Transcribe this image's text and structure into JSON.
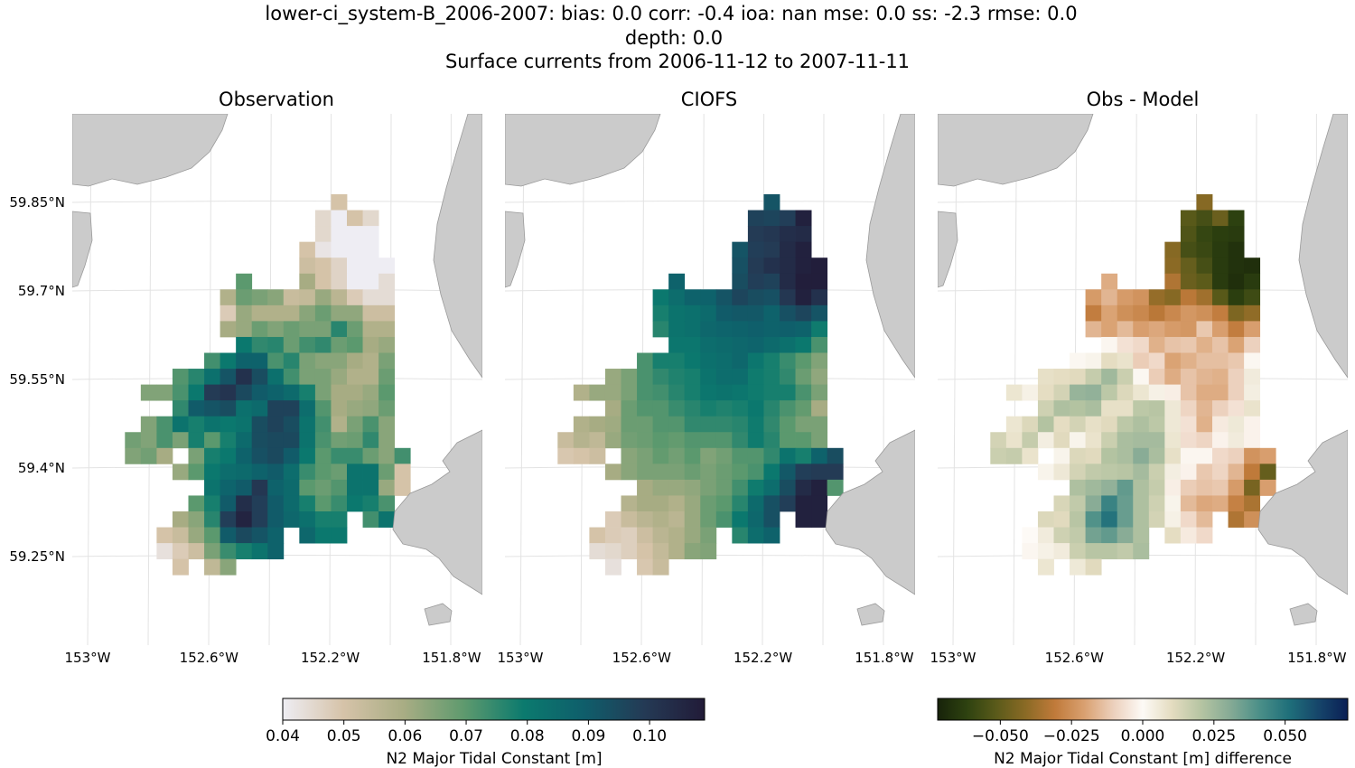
{
  "figure": {
    "title_lines": [
      "lower-ci_system-B_2006-2007: bias: 0.0  corr: -0.4  ioa: nan  mse: 0.0  ss: -2.3  rmse: 0.0",
      "depth: 0.0",
      "Surface currents from 2006-11-12 to 2007-11-11"
    ]
  },
  "panels": [
    {
      "title": "Observation"
    },
    {
      "title": "CIOFS"
    },
    {
      "title": "Obs - Model"
    }
  ],
  "lat_labels": [
    "59.85°N",
    "59.7°N",
    "59.55°N",
    "59.4°N",
    "59.25°N"
  ],
  "lon_labels": [
    "153°W",
    "152.6°W",
    "152.2°W",
    "151.8°W"
  ],
  "colorbars": [
    {
      "label": "N2 Major Tidal Constant [m]",
      "ticks": [
        0.04,
        0.05,
        0.06,
        0.07,
        0.08,
        0.09,
        0.1
      ],
      "tick_labels": [
        "0.04",
        "0.05",
        "0.06",
        "0.07",
        "0.08",
        "0.09",
        "0.10"
      ],
      "range": [
        0.04,
        0.109
      ]
    },
    {
      "label": "N2 Major Tidal Constant [m] difference",
      "ticks": [
        -0.05,
        -0.025,
        0,
        0.025,
        0.05
      ],
      "tick_labels": [
        "−0.050",
        "−0.025",
        "0.000",
        "0.025",
        "0.050"
      ],
      "range": [
        -0.072,
        0.072
      ]
    }
  ],
  "colors": {
    "land": "#cbcbcb",
    "value_cmap": [
      "#eeedf3",
      "#d6c3a9",
      "#a9ad84",
      "#5f9a6e",
      "#0b7a6e",
      "#0f5e6b",
      "#243a55",
      "#221b38"
    ],
    "diff_cmap": [
      "#17230a",
      "#2e4210",
      "#5a5a1a",
      "#8a6a25",
      "#c07a3a",
      "#d9a070",
      "#ecd0bc",
      "#fdfaf6",
      "#e4dcc0",
      "#b5c4a2",
      "#85aa95",
      "#4a8f88",
      "#1f6f7a",
      "#16456a",
      "#0a1f55"
    ]
  },
  "chart_data": {
    "type": "heatmap",
    "lon_range": [
      "153°W",
      "151.8°W"
    ],
    "lat_ticks": [
      59.85,
      59.7,
      59.55,
      59.4,
      59.25
    ],
    "lon_ticks": [
      -153.0,
      -152.6,
      -152.2,
      -151.8
    ],
    "grid_note": "rows top-to-bottom, each row lists start column and values (null = no data)",
    "observation": [
      {
        "c": 13,
        "v": [
          0.05
        ]
      },
      {
        "c": 12,
        "v": [
          0.045,
          0.04,
          0.05,
          0.045
        ]
      },
      {
        "c": 12,
        "v": [
          0.045,
          0.04,
          0.04,
          0.04
        ]
      },
      {
        "c": 11,
        "v": [
          0.05,
          0.042,
          0.04,
          0.04,
          0.04
        ]
      },
      {
        "c": 11,
        "v": [
          0.052,
          0.05,
          0.046,
          0.04,
          0.04,
          0.04
        ]
      },
      {
        "c": 7,
        "v": [
          0.07,
          null,
          null,
          null,
          0.06,
          0.05,
          0.046,
          0.04,
          0.04,
          0.044
        ]
      },
      {
        "c": 6,
        "v": [
          0.058,
          0.068,
          0.066,
          0.064,
          0.053,
          0.054,
          0.062,
          0.056,
          0.048,
          0.044,
          0.044
        ]
      },
      {
        "c": 6,
        "v": [
          0.048,
          0.062,
          0.058,
          0.058,
          0.058,
          0.064,
          0.068,
          0.063,
          0.063,
          0.052,
          0.052
        ]
      },
      {
        "c": 6,
        "v": [
          0.06,
          0.062,
          0.068,
          0.065,
          0.068,
          0.066,
          0.066,
          0.076,
          0.068,
          0.058,
          0.058
        ]
      },
      {
        "c": 7,
        "v": [
          0.08,
          0.075,
          0.076,
          0.068,
          0.073,
          0.075,
          0.068,
          0.07,
          0.06,
          0.062
        ]
      },
      {
        "c": 5,
        "v": [
          0.073,
          0.08,
          0.088,
          0.088,
          0.072,
          0.076,
          0.066,
          0.064,
          0.064,
          0.06,
          0.058,
          0.066
        ]
      },
      {
        "c": 3,
        "v": [
          0.071,
          0.076,
          0.083,
          0.092,
          0.102,
          0.094,
          0.083,
          0.073,
          0.066,
          0.066,
          0.062,
          0.058,
          0.058,
          0.068
        ]
      },
      {
        "c": 1,
        "v": [
          0.065,
          0.065,
          0.072,
          0.08,
          0.099,
          0.101,
          0.095,
          0.09,
          0.088,
          0.085,
          0.078,
          0.066,
          0.06,
          0.06,
          0.062,
          0.07
        ]
      },
      {
        "c": 3,
        "v": [
          0.075,
          0.09,
          0.092,
          0.094,
          0.083,
          0.085,
          0.097,
          0.097,
          0.084,
          0.071,
          0.06,
          0.062,
          0.063,
          0.068
        ]
      },
      {
        "c": 1,
        "v": [
          0.065,
          0.072,
          0.082,
          0.078,
          0.082,
          0.08,
          0.082,
          0.094,
          0.097,
          0.094,
          0.082,
          0.073,
          0.058,
          0.066,
          0.072,
          0.064
        ]
      },
      {
        "c": 0,
        "v": [
          0.067,
          0.065,
          0.072,
          0.066,
          0.078,
          0.07,
          0.078,
          0.085,
          0.094,
          0.095,
          0.095,
          0.082,
          0.072,
          0.067,
          0.068,
          0.075,
          0.064
        ]
      },
      {
        "c": 0,
        "v": [
          0.065,
          0.067,
          0.06,
          null,
          0.066,
          0.078,
          0.08,
          0.088,
          0.093,
          0.095,
          0.09,
          0.08,
          0.07,
          0.074,
          0.074,
          0.068,
          0.064,
          0.073
        ]
      },
      {
        "c": 3,
        "v": [
          0.062,
          0.07,
          0.08,
          0.084,
          0.085,
          0.088,
          0.09,
          0.084,
          0.074,
          0.07,
          0.068,
          0.082,
          0.082,
          0.068,
          0.05
        ]
      },
      {
        "c": 5,
        "v": [
          0.082,
          0.087,
          0.09,
          0.1,
          0.088,
          0.085,
          0.07,
          0.068,
          0.071,
          0.082,
          0.082,
          0.062,
          0.05
        ]
      },
      {
        "c": 4,
        "v": [
          0.07,
          0.078,
          0.09,
          0.103,
          0.098,
          0.09,
          0.085,
          0.078,
          0.07,
          0.074,
          0.08,
          0.078,
          0.072
        ]
      },
      {
        "c": 3,
        "v": [
          0.06,
          0.064,
          0.076,
          0.098,
          0.106,
          0.098,
          0.09,
          0.086,
          0.083,
          0.078,
          0.078,
          null,
          0.073,
          0.082
        ]
      },
      {
        "c": 2,
        "v": [
          0.05,
          0.053,
          0.062,
          0.07,
          0.09,
          0.095,
          0.092,
          0.088,
          null,
          0.086,
          0.08,
          0.08
        ]
      },
      {
        "c": 2,
        "v": [
          0.043,
          0.048,
          0.052,
          0.066,
          0.074,
          0.078,
          0.082,
          0.088
        ]
      },
      {
        "c": 3,
        "v": [
          0.05,
          null,
          0.055,
          0.064
        ]
      }
    ],
    "model": [
      {
        "c": 13,
        "v": [
          0.092
        ]
      },
      {
        "c": 12,
        "v": [
          0.097,
          0.096,
          0.098,
          0.107
        ]
      },
      {
        "c": 12,
        "v": [
          0.099,
          0.1,
          0.103,
          0.104
        ]
      },
      {
        "c": 11,
        "v": [
          0.092,
          0.098,
          0.099,
          0.104,
          0.107
        ]
      },
      {
        "c": 11,
        "v": [
          0.093,
          0.099,
          0.102,
          0.104,
          0.107,
          0.108
        ]
      },
      {
        "c": 7,
        "v": [
          0.088,
          null,
          null,
          null,
          0.094,
          0.098,
          0.097,
          0.104,
          0.108,
          0.108
        ]
      },
      {
        "c": 6,
        "v": [
          0.08,
          0.084,
          0.088,
          0.088,
          0.092,
          0.096,
          0.094,
          0.093,
          0.1,
          0.107,
          0.102
        ]
      },
      {
        "c": 6,
        "v": [
          0.078,
          0.082,
          0.083,
          0.085,
          0.09,
          0.091,
          0.091,
          0.088,
          0.093,
          0.096,
          0.092
        ]
      },
      {
        "c": 6,
        "v": [
          0.076,
          0.082,
          0.083,
          0.086,
          0.087,
          0.088,
          0.089,
          0.088,
          0.089,
          0.088,
          0.079
        ]
      },
      {
        "c": 7,
        "v": [
          0.081,
          0.081,
          0.084,
          0.085,
          0.086,
          0.087,
          0.085,
          0.083,
          0.08,
          0.072
        ]
      },
      {
        "c": 5,
        "v": [
          0.072,
          0.078,
          0.078,
          0.08,
          0.083,
          0.084,
          0.086,
          0.081,
          0.078,
          0.074,
          0.07,
          0.065
        ]
      },
      {
        "c": 3,
        "v": [
          0.062,
          0.066,
          0.072,
          0.075,
          0.077,
          0.078,
          0.082,
          0.084,
          0.084,
          0.079,
          0.078,
          0.075,
          0.068,
          0.063
        ]
      },
      {
        "c": 1,
        "v": [
          0.058,
          0.062,
          0.062,
          0.066,
          0.072,
          0.073,
          0.076,
          0.078,
          0.081,
          0.082,
          0.081,
          0.079,
          0.078,
          0.078,
          0.072,
          0.066
        ]
      },
      {
        "c": 3,
        "v": [
          0.06,
          0.068,
          0.071,
          0.071,
          0.074,
          0.076,
          0.078,
          0.077,
          0.078,
          0.08,
          0.076,
          0.072,
          0.069,
          0.06
        ]
      },
      {
        "c": 1,
        "v": [
          0.058,
          0.06,
          0.061,
          0.068,
          0.068,
          0.071,
          0.071,
          0.075,
          0.075,
          0.075,
          0.076,
          0.079,
          0.075,
          0.07,
          0.066,
          0.066
        ]
      },
      {
        "c": 0,
        "v": [
          0.053,
          0.057,
          0.055,
          0.062,
          0.067,
          0.068,
          0.07,
          0.069,
          0.071,
          0.071,
          0.071,
          0.075,
          0.079,
          0.076,
          0.07,
          0.07,
          0.066
        ]
      },
      {
        "c": 0,
        "v": [
          0.049,
          0.05,
          0.052,
          null,
          0.064,
          0.066,
          0.069,
          0.067,
          0.07,
          0.065,
          0.067,
          0.071,
          0.071,
          0.075,
          0.082,
          0.078,
          0.088,
          0.094
        ]
      },
      {
        "c": 3,
        "v": [
          0.06,
          0.064,
          0.066,
          0.066,
          0.066,
          0.068,
          0.066,
          0.068,
          0.07,
          0.072,
          0.08,
          0.091,
          0.098,
          0.099,
          0.099
        ]
      },
      {
        "c": 5,
        "v": [
          0.06,
          0.062,
          0.062,
          0.063,
          0.066,
          0.068,
          0.073,
          0.079,
          0.084,
          0.094,
          0.104,
          0.107,
          0.071
        ]
      },
      {
        "c": 4,
        "v": [
          0.057,
          0.06,
          0.06,
          0.058,
          0.062,
          0.068,
          0.07,
          0.076,
          0.085,
          0.093,
          0.098,
          0.107,
          0.107
        ]
      },
      {
        "c": 3,
        "v": [
          0.048,
          0.053,
          0.056,
          0.058,
          0.056,
          0.062,
          0.068,
          0.072,
          0.08,
          0.086,
          0.093,
          null,
          0.107,
          0.107
        ]
      },
      {
        "c": 2,
        "v": [
          0.05,
          0.048,
          0.047,
          0.052,
          0.056,
          0.058,
          0.062,
          0.066,
          null,
          0.076,
          0.084,
          0.088
        ]
      },
      {
        "c": 2,
        "v": [
          0.044,
          0.045,
          0.047,
          0.05,
          0.054,
          0.058,
          0.064,
          0.065
        ]
      },
      {
        "c": 3,
        "v": [
          0.043,
          null,
          0.049,
          0.053
        ]
      }
    ],
    "difference": "observation - model"
  }
}
